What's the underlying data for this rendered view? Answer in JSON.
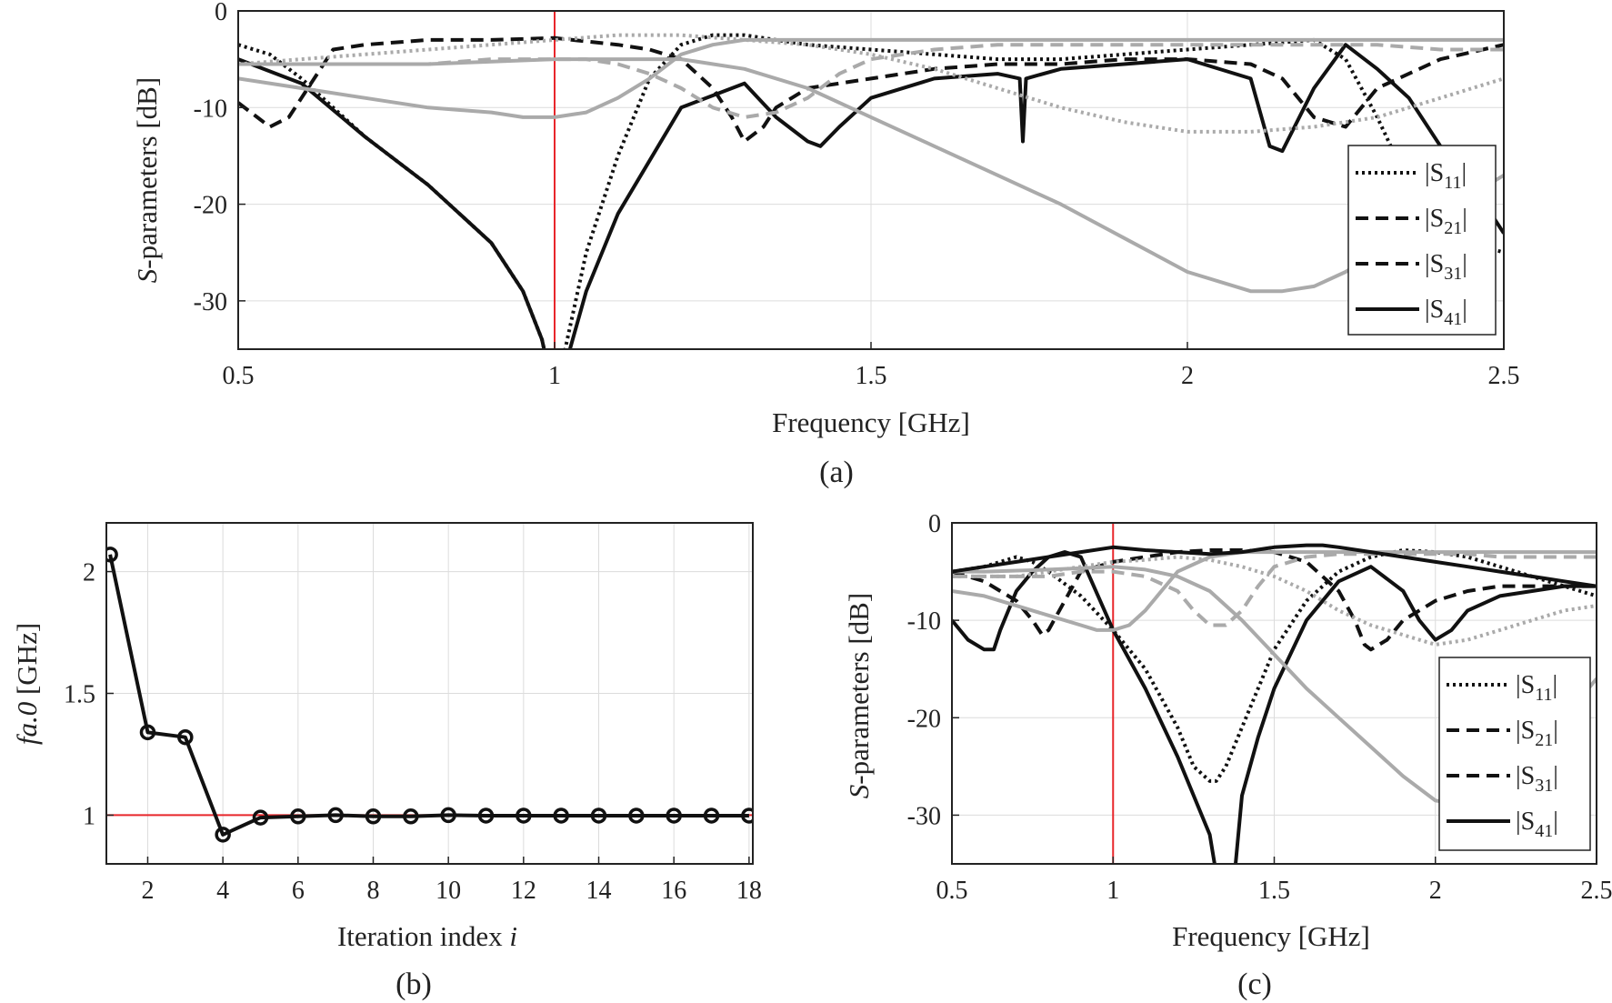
{
  "captions": {
    "a": "(a)",
    "b": "(b)",
    "c": "(c)"
  },
  "chart_data": [
    {
      "id": "a",
      "type": "line",
      "xlabel": "Frequency [GHz]",
      "ylabel_italic": "S",
      "ylabel_rest": "-parameters [dB]",
      "xlim": [
        0.5,
        2.5
      ],
      "ylim": [
        -35,
        0
      ],
      "xticks": [
        0.5,
        1,
        1.5,
        2,
        2.5
      ],
      "xtick_labels": [
        "0.5",
        "1",
        "1.5",
        "2",
        "2.5"
      ],
      "yticks": [
        0,
        -10,
        -20,
        -30
      ],
      "ytick_labels": [
        "0",
        "-10",
        "-20",
        "-30"
      ],
      "grid": true,
      "vline": {
        "x": 1.0,
        "color": "#e8262b"
      },
      "legend": {
        "position": "right",
        "entries": [
          {
            "base": "|S",
            "sub": "11",
            "end": "|",
            "dash": "dot"
          },
          {
            "base": "|S",
            "sub": "21",
            "end": "|",
            "dash": "dash"
          },
          {
            "base": "|S",
            "sub": "31",
            "end": "|",
            "dash": "dash"
          },
          {
            "base": "|S",
            "sub": "41",
            "end": "|",
            "dash": "solid"
          }
        ]
      },
      "series": [
        {
          "color": "#111111",
          "dash": "dot",
          "x": [
            0.5,
            0.55,
            0.6,
            0.7,
            0.8,
            0.9,
            0.95,
            0.98,
            1.0,
            1.02,
            1.05,
            1.1,
            1.15,
            1.2,
            1.25,
            1.3,
            1.35,
            1.4,
            1.5,
            1.6,
            1.7,
            1.74,
            1.8,
            1.9,
            2.0,
            2.1,
            2.2,
            2.25,
            2.3,
            2.35,
            2.4,
            2.45,
            2.5
          ],
          "y": [
            -3.5,
            -4.5,
            -7,
            -13,
            -18,
            -24,
            -29,
            -34,
            -40,
            -34,
            -25,
            -15,
            -7,
            -3.5,
            -2.5,
            -2.5,
            -3,
            -3.5,
            -4,
            -4.5,
            -5,
            -5,
            -5,
            -4.5,
            -4,
            -3.5,
            -3,
            -5,
            -11,
            -18,
            -22,
            -24,
            -25
          ]
        },
        {
          "color": "#111111",
          "dash": "dash",
          "x": [
            0.5,
            0.53,
            0.55,
            0.58,
            0.6,
            0.65,
            0.7,
            0.8,
            0.9,
            1.0,
            1.1,
            1.15,
            1.2,
            1.25,
            1.28,
            1.3,
            1.33,
            1.35,
            1.4,
            1.5,
            1.6,
            1.7,
            1.74,
            1.8,
            1.9,
            2.0,
            2.1,
            2.15,
            2.2,
            2.25,
            2.3,
            2.4,
            2.5
          ],
          "y": [
            -9.5,
            -11,
            -12,
            -11,
            -9,
            -4,
            -3.5,
            -3,
            -3,
            -2.8,
            -3.5,
            -4,
            -5,
            -8,
            -11,
            -13.5,
            -12,
            -10,
            -8,
            -7,
            -6,
            -5.5,
            -5.5,
            -5.5,
            -5,
            -5,
            -5.5,
            -7,
            -11,
            -12,
            -8,
            -5,
            -3.5
          ]
        },
        {
          "color": "#111111",
          "dash": "solid",
          "x": [
            0.5,
            0.6,
            0.7,
            0.8,
            0.9,
            0.95,
            0.98,
            1.0,
            1.02,
            1.05,
            1.1,
            1.2,
            1.3,
            1.35,
            1.4,
            1.42,
            1.45,
            1.5,
            1.6,
            1.7,
            1.735,
            1.74,
            1.745,
            1.8,
            1.9,
            2.0,
            2.1,
            2.13,
            2.15,
            2.2,
            2.25,
            2.3,
            2.35,
            2.4,
            2.45,
            2.5
          ],
          "y": [
            -5,
            -7.5,
            -13,
            -18,
            -24,
            -29,
            -34,
            -40,
            -36,
            -29,
            -21,
            -10,
            -7.5,
            -11,
            -13.5,
            -14,
            -12,
            -9,
            -7,
            -6.5,
            -7,
            -13.5,
            -7,
            -6,
            -5.5,
            -5,
            -7,
            -14,
            -14.5,
            -8,
            -3.5,
            -6,
            -9,
            -14,
            -18,
            -23
          ]
        },
        {
          "color": "#aaaaaa",
          "dash": "dot",
          "x": [
            0.5,
            0.6,
            0.7,
            0.8,
            0.9,
            1.0,
            1.1,
            1.2,
            1.3,
            1.4,
            1.5,
            1.6,
            1.7,
            1.8,
            1.9,
            2.0,
            2.1,
            2.2,
            2.3,
            2.4,
            2.5
          ],
          "y": [
            -5.5,
            -5,
            -4.5,
            -4,
            -3.5,
            -3,
            -2.5,
            -2.5,
            -3,
            -3.5,
            -4.5,
            -6,
            -8,
            -10,
            -11.5,
            -12.5,
            -12.5,
            -12,
            -11,
            -9,
            -7
          ]
        },
        {
          "color": "#aaaaaa",
          "dash": "dash",
          "x": [
            0.5,
            0.6,
            0.7,
            0.8,
            0.9,
            1.0,
            1.05,
            1.1,
            1.15,
            1.2,
            1.25,
            1.3,
            1.35,
            1.4,
            1.45,
            1.5,
            1.6,
            1.7,
            1.8,
            1.9,
            2.0,
            2.1,
            2.2,
            2.3,
            2.4,
            2.5
          ],
          "y": [
            -5.5,
            -5.5,
            -5.5,
            -5.5,
            -5,
            -5,
            -5,
            -5.5,
            -6.5,
            -8,
            -10,
            -11,
            -10.5,
            -9,
            -6.5,
            -5,
            -4,
            -3.5,
            -3.5,
            -3.5,
            -3.5,
            -3.5,
            -3.5,
            -3.5,
            -4,
            -4
          ]
        },
        {
          "color": "#aaaaaa",
          "dash": "solid",
          "x": [
            0.5,
            0.6,
            0.7,
            0.8,
            0.9,
            0.95,
            1.0,
            1.05,
            1.1,
            1.15,
            1.2,
            1.25,
            1.3,
            1.4,
            1.5,
            1.6,
            1.7,
            1.8,
            1.9,
            2.0,
            2.1,
            2.2,
            2.3,
            2.4,
            2.5
          ],
          "y": [
            -7,
            -8,
            -9,
            -10,
            -10.5,
            -11,
            -11,
            -10.5,
            -9,
            -7,
            -4.5,
            -3.5,
            -3,
            -3,
            -3,
            -3,
            -3,
            -3,
            -3,
            -3,
            -3,
            -3,
            -3,
            -3,
            -3
          ]
        },
        {
          "color": "#aaaaaa",
          "dash": "solid",
          "x": [
            0.5,
            0.6,
            0.8,
            1.0,
            1.2,
            1.3,
            1.4,
            1.5,
            1.6,
            1.7,
            1.8,
            1.9,
            2.0,
            2.1,
            2.15,
            2.2,
            2.25,
            2.3,
            2.4,
            2.5
          ],
          "y": [
            -5.5,
            -5.5,
            -5.5,
            -5,
            -5,
            -6,
            -8,
            -11,
            -14,
            -17,
            -20,
            -23.5,
            -27,
            -29,
            -29,
            -28.5,
            -27,
            -25,
            -21,
            -17
          ]
        }
      ]
    },
    {
      "id": "b",
      "type": "line",
      "xlabel_roman": "Iteration index ",
      "xlabel_italic": "i",
      "ylabel_italic": "fa.0",
      "ylabel_rest": " [GHz]",
      "xlim": [
        0.9,
        18.1
      ],
      "ylim": [
        0.8,
        2.2
      ],
      "xticks": [
        2,
        4,
        6,
        8,
        10,
        12,
        14,
        16,
        18
      ],
      "xtick_labels": [
        "2",
        "4",
        "6",
        "8",
        "10",
        "12",
        "14",
        "16",
        "18"
      ],
      "yticks": [
        1,
        1.5,
        2
      ],
      "ytick_labels": [
        "1",
        "1.5",
        "2"
      ],
      "grid": true,
      "hline": {
        "y": 1.0,
        "color": "#e8262b"
      },
      "series": [
        {
          "color": "#111111",
          "marker": "circle",
          "x": [
            1,
            2,
            3,
            4,
            5,
            6,
            7,
            8,
            9,
            10,
            11,
            12,
            13,
            14,
            15,
            16,
            17,
            18
          ],
          "y": [
            2.07,
            1.34,
            1.32,
            0.92,
            0.99,
            0.995,
            1.0,
            0.995,
            0.995,
            1.0,
            0.998,
            0.998,
            0.998,
            0.998,
            0.998,
            0.998,
            0.998,
            0.998
          ]
        }
      ]
    },
    {
      "id": "c",
      "type": "line",
      "xlabel": "Frequency [GHz]",
      "ylabel_italic": "S",
      "ylabel_rest": "-parameters [dB]",
      "xlim": [
        0.5,
        2.5
      ],
      "ylim": [
        -35,
        0
      ],
      "xticks": [
        0.5,
        1,
        1.5,
        2,
        2.5
      ],
      "xtick_labels": [
        "0.5",
        "1",
        "1.5",
        "2",
        "2.5"
      ],
      "yticks": [
        0,
        -10,
        -20,
        -30
      ],
      "ytick_labels": [
        "0",
        "-10",
        "-20",
        "-30"
      ],
      "grid": true,
      "vline": {
        "x": 1.0,
        "color": "#e8262b"
      },
      "legend": {
        "position": "right",
        "entries": [
          {
            "base": "|S",
            "sub": "11",
            "end": "|",
            "dash": "dot"
          },
          {
            "base": "|S",
            "sub": "21",
            "end": "|",
            "dash": "dash"
          },
          {
            "base": "|S",
            "sub": "31",
            "end": "|",
            "dash": "dash"
          },
          {
            "base": "|S",
            "sub": "41",
            "end": "|",
            "dash": "solid"
          }
        ]
      },
      "series": [
        {
          "color": "#111111",
          "dash": "dot",
          "x": [
            0.5,
            0.6,
            0.7,
            0.75,
            0.8,
            0.9,
            1.0,
            1.1,
            1.2,
            1.25,
            1.3,
            1.32,
            1.35,
            1.4,
            1.5,
            1.6,
            1.7,
            1.8,
            1.9,
            2.0,
            2.1,
            2.2,
            2.3,
            2.4,
            2.5
          ],
          "y": [
            -5,
            -4.5,
            -3.5,
            -4,
            -5,
            -7.5,
            -11,
            -15,
            -21,
            -25,
            -26.5,
            -26.5,
            -25,
            -21,
            -13,
            -8,
            -5,
            -3.5,
            -2.8,
            -3,
            -3.5,
            -4.5,
            -5.5,
            -6.5,
            -7.5
          ]
        },
        {
          "color": "#111111",
          "dash": "dash",
          "x": [
            0.5,
            0.6,
            0.7,
            0.75,
            0.78,
            0.8,
            0.85,
            0.9,
            1.0,
            1.1,
            1.2,
            1.3,
            1.4,
            1.5,
            1.6,
            1.7,
            1.75,
            1.78,
            1.8,
            1.85,
            1.9,
            2.0,
            2.1,
            2.2,
            2.3,
            2.4,
            2.5
          ],
          "y": [
            -5,
            -6,
            -8,
            -10,
            -11.5,
            -11,
            -8,
            -5,
            -4,
            -3.5,
            -3,
            -2.8,
            -2.8,
            -3,
            -4,
            -7,
            -10,
            -12.5,
            -13,
            -12,
            -10,
            -8,
            -7,
            -6.5,
            -6.5,
            -6.5,
            -6.5
          ]
        },
        {
          "color": "#111111",
          "dash": "solid",
          "x": [
            0.5,
            0.55,
            0.6,
            0.63,
            0.65,
            0.7,
            0.75,
            0.8,
            0.85,
            0.9,
            1.0,
            1.1,
            1.2,
            1.3,
            1.33,
            1.35,
            1.38,
            1.4,
            1.45,
            1.5,
            1.6,
            1.7,
            1.8,
            1.9,
            1.95,
            2.0,
            2.05,
            2.1,
            2.2,
            2.3,
            2.4,
            2.5
          ],
          "y": [
            -10,
            -12,
            -13,
            -13,
            -11,
            -7,
            -5,
            -3.5,
            -3,
            -3.5,
            -11,
            -17,
            -24,
            -32,
            -38,
            -40,
            -35,
            -28,
            -22,
            -17,
            -10,
            -6,
            -4.5,
            -7,
            -10,
            -12,
            -11,
            -9,
            -7.5,
            -7,
            -6.5,
            -6.5
          ]
        },
        {
          "color": "#aaaaaa",
          "dash": "dot",
          "x": [
            0.5,
            0.6,
            0.7,
            0.8,
            0.9,
            1.0,
            1.1,
            1.2,
            1.3,
            1.4,
            1.5,
            1.6,
            1.7,
            1.8,
            1.9,
            2.0,
            2.1,
            2.2,
            2.3,
            2.4,
            2.5
          ],
          "y": [
            -5.5,
            -5.5,
            -5.5,
            -5,
            -4.5,
            -4,
            -3.8,
            -3.5,
            -3.8,
            -4.5,
            -5.5,
            -7,
            -9,
            -10.5,
            -11.5,
            -12.5,
            -12,
            -11,
            -10,
            -9,
            -8.5
          ]
        },
        {
          "color": "#aaaaaa",
          "dash": "dash",
          "x": [
            0.5,
            0.6,
            0.7,
            0.8,
            0.9,
            1.0,
            1.1,
            1.2,
            1.25,
            1.3,
            1.35,
            1.4,
            1.45,
            1.5,
            1.6,
            1.7,
            1.8,
            1.9,
            2.0,
            2.1,
            2.2,
            2.3,
            2.4,
            2.5
          ],
          "y": [
            -5.5,
            -5.5,
            -5.5,
            -5.5,
            -5,
            -5,
            -5.5,
            -7,
            -9,
            -10.5,
            -10.5,
            -9,
            -6.5,
            -4.5,
            -3.5,
            -3.2,
            -3.2,
            -3.2,
            -3.2,
            -3.2,
            -3.5,
            -3.5,
            -3.5,
            -3.5
          ]
        },
        {
          "color": "#aaaaaa",
          "dash": "solid",
          "x": [
            0.5,
            0.6,
            0.7,
            0.8,
            0.9,
            0.95,
            1.0,
            1.05,
            1.1,
            1.15,
            1.2,
            1.3,
            1.4,
            1.5,
            1.6,
            1.7,
            1.8,
            1.9,
            2.0,
            2.1,
            2.2,
            2.3,
            2.4,
            2.5
          ],
          "y": [
            -7,
            -7.5,
            -8.5,
            -9.5,
            -10.5,
            -11,
            -11,
            -10.5,
            -9,
            -7,
            -5,
            -3.5,
            -3,
            -3,
            -3,
            -3,
            -3,
            -3,
            -3,
            -3,
            -3,
            -3,
            -3,
            -3
          ]
        },
        {
          "color": "#aaaaaa",
          "dash": "solid",
          "x": [
            0.5,
            0.6,
            0.8,
            1.0,
            1.1,
            1.2,
            1.3,
            1.4,
            1.5,
            1.6,
            1.7,
            1.8,
            1.9,
            2.0,
            2.1,
            2.2,
            2.3,
            2.4,
            2.5
          ],
          "y": [
            -5,
            -5,
            -4.8,
            -4.5,
            -4.8,
            -5.5,
            -7,
            -10,
            -13.5,
            -17,
            -20,
            -23,
            -26,
            -28.5,
            -29,
            -27,
            -24,
            -20,
            -16
          ]
        },
        {
          "color": "#111111",
          "dash": "solid",
          "x": [
            0.5,
            0.6,
            0.7,
            0.8,
            0.9,
            1.0,
            1.1,
            1.2,
            1.3,
            1.4,
            1.5,
            1.6,
            1.65,
            1.7,
            1.8,
            1.9,
            2.0,
            2.1,
            2.2,
            2.3,
            2.4,
            2.5
          ],
          "y": [
            -5,
            -4.5,
            -4,
            -3.5,
            -3,
            -2.5,
            -2.8,
            -3,
            -3.2,
            -3,
            -2.5,
            -2.3,
            -2.3,
            -2.5,
            -3,
            -3.5,
            -4,
            -4.5,
            -5,
            -5.5,
            -6,
            -6.5
          ]
        }
      ]
    }
  ]
}
